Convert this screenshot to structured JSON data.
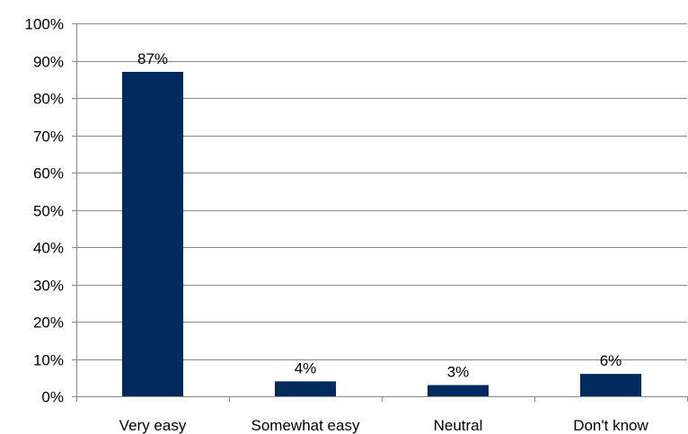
{
  "chart_data": {
    "type": "bar",
    "categories": [
      "Very easy",
      "Somewhat easy",
      "Neutral",
      "Don't know"
    ],
    "values": [
      87,
      4,
      3,
      6
    ],
    "data_labels": [
      "87%",
      "4%",
      "3%",
      "6%"
    ],
    "title": "",
    "xlabel": "",
    "ylabel": "",
    "ylim": [
      0,
      100
    ],
    "y_ticks": [
      0,
      10,
      20,
      30,
      40,
      50,
      60,
      70,
      80,
      90,
      100
    ],
    "y_tick_labels": [
      "0%",
      "10%",
      "20%",
      "30%",
      "40%",
      "50%",
      "60%",
      "70%",
      "80%",
      "90%",
      "100%"
    ],
    "grid": true,
    "legend": "none",
    "bar_color": "#002B5C"
  }
}
